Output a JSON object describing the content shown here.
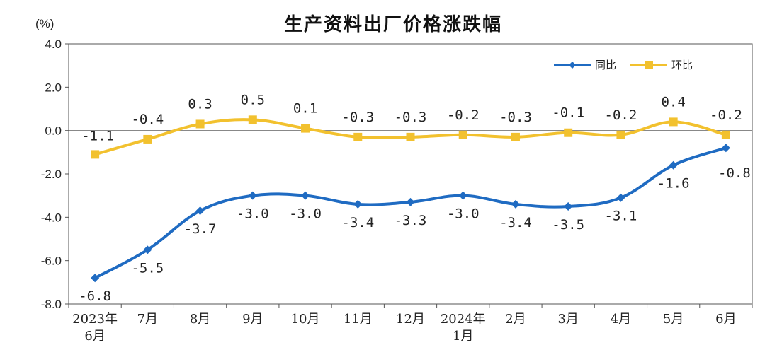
{
  "chart_data": {
    "type": "line",
    "title": "生产资料出厂价格涨跌幅",
    "ylabel": "(%)",
    "ylim": [
      -8.0,
      4.0
    ],
    "yticks": [
      "4.0",
      "2.0",
      "0.0",
      "-2.0",
      "-4.0",
      "-6.0",
      "-8.0"
    ],
    "ytick_values": [
      4,
      2,
      0,
      -2,
      -4,
      -6,
      -8
    ],
    "categories": [
      [
        "2023年",
        "6月"
      ],
      [
        "7月"
      ],
      [
        "8月"
      ],
      [
        "9月"
      ],
      [
        "10月"
      ],
      [
        "11月"
      ],
      [
        "12月"
      ],
      [
        "2024年",
        "1月"
      ],
      [
        "2月"
      ],
      [
        "3月"
      ],
      [
        "4月"
      ],
      [
        "5月"
      ],
      [
        "6月"
      ]
    ],
    "legend_position": "top-right",
    "grid": false,
    "series": [
      {
        "name": "同比",
        "color": "#1F6BC2",
        "marker": "diamond",
        "values": [
          -6.8,
          -5.5,
          -3.7,
          -3.0,
          -3.0,
          -3.4,
          -3.3,
          -3.0,
          -3.4,
          -3.5,
          -3.1,
          -1.6,
          -0.8
        ],
        "labels": [
          "-6.8",
          "-5.5",
          "-3.7",
          "-3.0",
          "-3.0",
          "-3.4",
          "-3.3",
          "-3.0",
          "-3.4",
          "-3.5",
          "-3.1",
          "-1.6",
          "-0.8"
        ]
      },
      {
        "name": "环比",
        "color": "#F2C12E",
        "marker": "square",
        "values": [
          -1.1,
          -0.4,
          0.3,
          0.5,
          0.1,
          -0.3,
          -0.3,
          -0.2,
          -0.3,
          -0.1,
          -0.2,
          0.4,
          -0.2
        ],
        "labels": [
          "-1.1",
          "-0.4",
          "0.3",
          "0.5",
          "0.1",
          "-0.3",
          "-0.3",
          "-0.2",
          "-0.3",
          "-0.1",
          "-0.2",
          "0.4",
          "-0.2"
        ]
      }
    ]
  }
}
